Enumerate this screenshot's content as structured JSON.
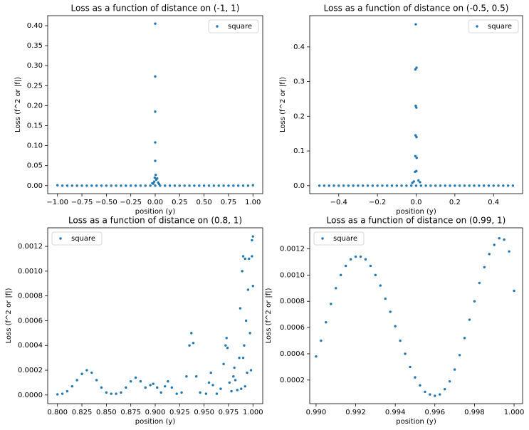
{
  "chart_data": [
    {
      "type": "scatter",
      "title": "Loss as a function of distance on (-1, 1)",
      "xlabel": "position (y)",
      "ylabel": "Loss (f^2 or |f|)",
      "legend": "upper right",
      "series": [
        {
          "name": "square",
          "color": "#1f77b4",
          "x": [
            -1,
            -0.95,
            -0.9,
            -0.85,
            -0.8,
            -0.75,
            -0.7,
            -0.65,
            -0.6,
            -0.55,
            -0.5,
            -0.45,
            -0.4,
            -0.35,
            -0.3,
            -0.25,
            -0.2,
            -0.15,
            -0.1,
            -0.05,
            0,
            0.05,
            0.1,
            0.15,
            0.2,
            0.25,
            0.3,
            0.35,
            0.4,
            0.45,
            0.5,
            0.55,
            0.6,
            0.65,
            0.7,
            0.75,
            0.8,
            0.85,
            0.9,
            0.95,
            1,
            0,
            0,
            0,
            0,
            0,
            0.005,
            -0.005,
            0.01,
            -0.01,
            0.02,
            -0.02,
            0.03,
            0.04,
            -0.03
          ],
          "y": [
            0.001,
            0,
            0,
            0,
            0,
            0,
            0,
            0,
            0,
            0,
            0,
            0,
            0,
            0,
            0,
            0,
            0,
            0,
            0,
            0,
            0,
            0,
            0,
            0,
            0,
            0,
            0,
            0,
            0,
            0,
            0,
            0,
            0,
            0,
            0,
            0,
            0,
            0,
            0,
            0,
            0.001,
            0.405,
            0.273,
            0.185,
            0.108,
            0.062,
            0.027,
            0.02,
            0.015,
            0.01,
            0.018,
            0.005,
            0.008,
            0.004,
            0.006
          ]
        }
      ],
      "xlim": [
        -1.1,
        1.1
      ],
      "ylim": [
        -0.02,
        0.425
      ],
      "xticks": [
        {
          "value": -1,
          "label": "−1.00"
        },
        {
          "value": -0.75,
          "label": "−0.75"
        },
        {
          "value": -0.5,
          "label": "−0.50"
        },
        {
          "value": -0.25,
          "label": "−0.25"
        },
        {
          "value": 0,
          "label": "0.00"
        },
        0.25,
        {
          "value": 0.5,
          "label": "0.50"
        },
        0.75,
        {
          "value": 1,
          "label": "1.00"
        }
      ],
      "yticks": [
        {
          "value": 0,
          "label": "0.00"
        },
        0.05,
        {
          "value": 0.1,
          "label": "0.10"
        },
        0.15,
        {
          "value": 0.2,
          "label": "0.20"
        },
        0.25,
        {
          "value": 0.3,
          "label": "0.30"
        },
        0.35,
        {
          "value": 0.4,
          "label": "0.40"
        }
      ]
    },
    {
      "type": "scatter",
      "title": "Loss as a function of distance on (-0.5, 0.5)",
      "xlabel": "position (y)",
      "ylabel": "Loss (f^2 or |f|)",
      "legend": "upper right",
      "series": [
        {
          "name": "square",
          "color": "#1f77b4",
          "x": [
            -0.5,
            -0.475,
            -0.45,
            -0.425,
            -0.4,
            -0.375,
            -0.35,
            -0.325,
            -0.3,
            -0.275,
            -0.25,
            -0.225,
            -0.2,
            -0.175,
            -0.15,
            -0.125,
            -0.1,
            -0.075,
            -0.05,
            -0.025,
            0,
            0.025,
            0.05,
            0.075,
            0.1,
            0.125,
            0.15,
            0.175,
            0.2,
            0.225,
            0.25,
            0.275,
            0.3,
            0.325,
            0.35,
            0.375,
            0.4,
            0.425,
            0.45,
            0.475,
            0.5,
            -0.002,
            0.002,
            -0.004,
            -0.002,
            0.001,
            -0.003,
            0.002,
            -0.004,
            0.003,
            -0.006,
            0.001,
            0.012,
            -0.012,
            0.02,
            -0.02
          ],
          "y": [
            0,
            0,
            0,
            0,
            0,
            0,
            0,
            0,
            0,
            0,
            0,
            0,
            0,
            0,
            0,
            0,
            0,
            0,
            0,
            0,
            0,
            0,
            0,
            0,
            0,
            0,
            0,
            0,
            0,
            0,
            0,
            0,
            0,
            0,
            0,
            0,
            0,
            0,
            0,
            0,
            0,
            0.465,
            0.34,
            0.335,
            0.23,
            0.225,
            0.145,
            0.14,
            0.085,
            0.08,
            0.04,
            0.042,
            0.015,
            0.012,
            0.01,
            0.008
          ]
        }
      ],
      "xlim": [
        -0.55,
        0.55
      ],
      "ylim": [
        -0.023,
        0.49
      ],
      "xticks": [
        {
          "value": -0.4,
          "label": "−0.4"
        },
        {
          "value": -0.2,
          "label": "−0.2"
        },
        {
          "value": 0,
          "label": "0.0"
        },
        0.2,
        0.4
      ],
      "yticks": [
        {
          "value": 0,
          "label": "0.0"
        },
        0.1,
        0.2,
        0.3,
        0.4
      ]
    },
    {
      "type": "scatter",
      "title": "Loss as a function of distance on (0.8, 1)",
      "xlabel": "position (y)",
      "ylabel": "Loss (f^2 or |f|)",
      "legend": "upper left",
      "series": [
        {
          "name": "square",
          "color": "#1f77b4",
          "x": [
            0.8,
            0.805,
            0.81,
            0.815,
            0.82,
            0.825,
            0.83,
            0.835,
            0.84,
            0.845,
            0.85,
            0.855,
            0.86,
            0.865,
            0.87,
            0.875,
            0.88,
            0.885,
            0.89,
            0.895,
            0.898,
            0.902,
            0.906,
            0.91,
            0.913,
            0.917,
            0.922,
            0.927,
            0.932,
            0.935,
            0.937,
            0.939,
            0.942,
            0.946,
            0.952,
            0.955,
            0.957,
            0.959,
            0.963,
            0.967,
            0.97,
            0.972,
            0.973,
            0.974,
            0.976,
            0.978,
            0.98,
            0.981,
            0.982,
            0.984,
            0.986,
            0.987,
            0.988,
            0.989,
            0.99,
            0.991,
            0.992,
            0.993,
            0.994,
            0.995,
            0.996,
            0.997,
            0.998,
            0.999,
            1,
            1,
            0.999,
            0.99,
            0.992
          ],
          "y": [
            5e-06,
            1e-05,
            3e-05,
            7e-05,
            0.00012,
            0.00017,
            0.0002,
            0.00018,
            0.00012,
            6e-05,
            2e-05,
            1e-05,
            1e-05,
            2e-05,
            6e-05,
            0.00011,
            0.00014,
            0.00011,
            6e-05,
            8e-05,
            9e-05,
            6e-05,
            2e-05,
            7e-05,
            0.00011,
            6e-05,
            1e-05,
            2e-05,
            0.00015,
            0.0004,
            0.0005,
            0.00042,
            0.00015,
            2e-05,
            1e-05,
            0.0001,
            0.00018,
            8e-05,
            1e-05,
            5e-05,
            0.00025,
            0.0004,
            0.00046,
            0.00038,
            0.0001,
            3e-05,
            0.00015,
            0.00022,
            0.00012,
            4e-05,
            0.0003,
            0.0007,
            5e-05,
            0.001,
            0.00112,
            0.0004,
            0.0011,
            0.0006,
            0.00018,
            0.00085,
            0.0011,
            0.0005,
            0.0002,
            0.00125,
            0.00128,
            0.00088,
            0.00112,
            0.0003,
            7e-05
          ]
        }
      ],
      "xlim": [
        0.79,
        1.01
      ],
      "ylim": [
        -7e-05,
        0.00135
      ],
      "xticks": [
        {
          "value": 0.8,
          "label": "0.800"
        },
        0.825,
        {
          "value": 0.85,
          "label": "0.850"
        },
        0.875,
        {
          "value": 0.9,
          "label": "0.900"
        },
        0.925,
        {
          "value": 0.95,
          "label": "0.950"
        },
        0.975,
        {
          "value": 1,
          "label": "1.000"
        }
      ],
      "yticks": [
        {
          "value": 0,
          "label": "0.0000"
        },
        0.0002,
        0.0004,
        0.0006,
        0.0008,
        {
          "value": 0.001,
          "label": "0.0010"
        },
        0.0012
      ]
    },
    {
      "type": "scatter",
      "title": "Loss as a function of distance on (0.99, 1)",
      "xlabel": "position (y)",
      "ylabel": "Loss (f^2 or |f|)",
      "legend": "upper left",
      "series": [
        {
          "name": "square",
          "color": "#1f77b4",
          "x": [
            0.99,
            0.99025,
            0.9905,
            0.99075,
            0.991,
            0.99125,
            0.9915,
            0.99175,
            0.992,
            0.99225,
            0.9925,
            0.99275,
            0.993,
            0.99325,
            0.9935,
            0.99375,
            0.994,
            0.99425,
            0.9945,
            0.99475,
            0.995,
            0.99525,
            0.9955,
            0.99575,
            0.996,
            0.99625,
            0.9965,
            0.99675,
            0.997,
            0.99725,
            0.9975,
            0.99775,
            0.998,
            0.99825,
            0.9985,
            0.99875,
            0.999,
            0.99925,
            0.9995,
            0.99975,
            1
          ],
          "y": [
            0.00038,
            0.0005,
            0.00064,
            0.00078,
            0.0009,
            0.001,
            0.00107,
            0.00112,
            0.00114,
            0.00114,
            0.00112,
            0.00107,
            0.001,
            0.00092,
            0.00082,
            0.00072,
            0.00061,
            0.0005,
            0.0004,
            0.0003,
            0.00022,
            0.00016,
            0.00011,
            9e-05,
            8e-05,
            9e-05,
            0.00013,
            0.00019,
            0.00028,
            0.00039,
            0.00052,
            0.00066,
            0.0008,
            0.00094,
            0.00106,
            0.00116,
            0.00123,
            0.00128,
            0.00127,
            0.00118,
            0.00088
          ]
        }
      ],
      "xlim": [
        0.98968,
        1.00043
      ],
      "ylim": [
        2e-05,
        0.00136
      ],
      "xticks": [
        {
          "value": 0.99,
          "label": "0.990"
        },
        0.992,
        0.994,
        0.996,
        0.998,
        {
          "value": 1,
          "label": "1.000"
        }
      ],
      "yticks": [
        0.0002,
        0.0004,
        0.0006,
        0.0008,
        {
          "value": 0.001,
          "label": "0.0010"
        },
        0.0012
      ]
    }
  ]
}
